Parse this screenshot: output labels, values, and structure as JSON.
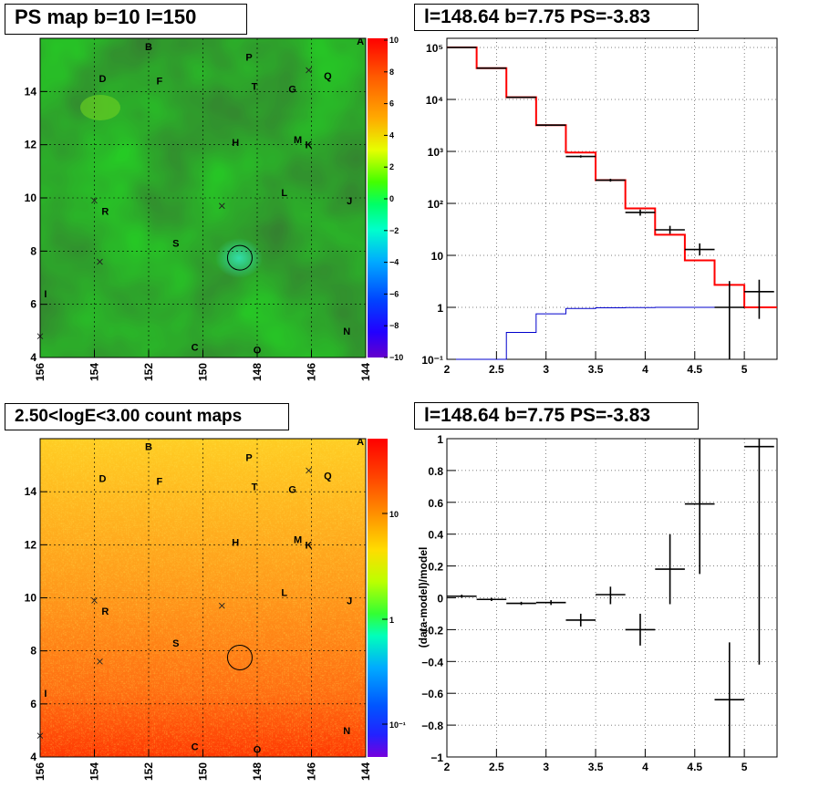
{
  "titles": {
    "map1": "PS map b=10 l=150",
    "plot1": "l=148.64 b=7.75 PS=-3.83",
    "map2": "2.50<logE<3.00 count maps",
    "plot2": "l=148.64 b=7.75 PS=-3.83"
  },
  "colors": {
    "map_green": "#22dd22",
    "map_orange": "#ff8c1a",
    "model_line": "#ff0000",
    "data_line": "#000000",
    "bg_line": "#0000cc"
  },
  "map_labels": [
    {
      "t": "A",
      "lon": 144.2,
      "lat": 15.9
    },
    {
      "t": "B",
      "lon": 152.0,
      "lat": 15.7
    },
    {
      "t": "P",
      "lon": 148.3,
      "lat": 15.3
    },
    {
      "t": "Q",
      "lon": 145.4,
      "lat": 14.6
    },
    {
      "t": "D",
      "lon": 153.7,
      "lat": 14.5
    },
    {
      "t": "F",
      "lon": 151.6,
      "lat": 14.4
    },
    {
      "t": "T",
      "lon": 148.1,
      "lat": 14.2
    },
    {
      "t": "G",
      "lon": 146.7,
      "lat": 14.1
    },
    {
      "t": "H",
      "lon": 148.8,
      "lat": 12.1
    },
    {
      "t": "M",
      "lon": 146.5,
      "lat": 12.2
    },
    {
      "t": "K",
      "lon": 146.1,
      "lat": 12.0
    },
    {
      "t": "L",
      "lon": 147.0,
      "lat": 10.2
    },
    {
      "t": "J",
      "lon": 144.6,
      "lat": 9.9
    },
    {
      "t": "R",
      "lon": 153.6,
      "lat": 9.5
    },
    {
      "t": "S",
      "lon": 151.0,
      "lat": 8.3
    },
    {
      "t": "I",
      "lon": 155.8,
      "lat": 6.4
    },
    {
      "t": "N",
      "lon": 144.7,
      "lat": 5.0
    },
    {
      "t": "C",
      "lon": 150.3,
      "lat": 4.4
    },
    {
      "t": "O",
      "lon": 148.0,
      "lat": 4.3
    }
  ],
  "map_crosses": [
    {
      "lon": 146.1,
      "lat": 14.8
    },
    {
      "lon": 154.0,
      "lat": 9.9
    },
    {
      "lon": 149.3,
      "lat": 9.7
    },
    {
      "lon": 153.8,
      "lat": 7.6
    },
    {
      "lon": 156.0,
      "lat": 4.8
    }
  ],
  "source_circle": {
    "lon": 148.64,
    "lat": 7.75
  },
  "map1_axis": {
    "xticks": [
      "156",
      "154",
      "152",
      "150",
      "148",
      "146",
      "144"
    ],
    "yticks": [
      "4",
      "6",
      "8",
      "10",
      "12",
      "14"
    ],
    "colorbar_ticks": [
      "10",
      "8",
      "6",
      "4",
      "2",
      "0",
      "−2",
      "−4",
      "−6",
      "−8",
      "−10"
    ]
  },
  "map2_axis": {
    "xticks": [
      "156",
      "154",
      "152",
      "150",
      "148",
      "146",
      "144"
    ],
    "yticks": [
      "4",
      "6",
      "8",
      "10",
      "12",
      "14"
    ],
    "colorbar_ticks": [
      "10",
      "1",
      "10⁻¹"
    ]
  },
  "chart_data": [
    {
      "type": "line",
      "name": "spectrum",
      "xlim": [
        2.0,
        5.33
      ],
      "ylim": [
        0.1,
        150000
      ],
      "yscale": "log",
      "grid": true,
      "xticks": [
        "2",
        "2.5",
        "3",
        "3.5",
        "4",
        "4.5",
        "5"
      ],
      "yticks": [
        "10⁻¹",
        "1",
        "10",
        "10²",
        "10³",
        "10⁴",
        "10⁵"
      ],
      "model_steps": {
        "edges": [
          2.0,
          2.3,
          2.6,
          2.9,
          3.2,
          3.5,
          3.8,
          4.1,
          4.4,
          4.7,
          5.0,
          5.33
        ],
        "values": [
          100000,
          40000,
          11000,
          3200,
          950,
          280,
          80,
          25,
          8,
          2.7,
          1.0
        ]
      },
      "background_steps": {
        "edges": [
          2.0,
          2.6,
          2.9,
          3.2,
          3.5,
          3.8,
          4.1,
          4.4,
          4.7,
          5.0,
          5.33
        ],
        "values": [
          0.1,
          0.33,
          0.75,
          0.95,
          0.98,
          0.99,
          1.0,
          1.0,
          1.0,
          1.0
        ]
      },
      "data_points": [
        {
          "x": 2.15,
          "y": 100000,
          "xerr": 0.15,
          "ylo": 99000,
          "yhi": 101000
        },
        {
          "x": 2.45,
          "y": 40000,
          "xerr": 0.15,
          "ylo": 39500,
          "yhi": 40500
        },
        {
          "x": 2.75,
          "y": 11000,
          "xerr": 0.15,
          "ylo": 10800,
          "yhi": 11200
        },
        {
          "x": 3.05,
          "y": 3200,
          "xerr": 0.15,
          "ylo": 3100,
          "yhi": 3300
        },
        {
          "x": 3.35,
          "y": 800,
          "xerr": 0.15,
          "ylo": 760,
          "yhi": 840
        },
        {
          "x": 3.65,
          "y": 280,
          "xerr": 0.15,
          "ylo": 262,
          "yhi": 298
        },
        {
          "x": 3.95,
          "y": 67,
          "xerr": 0.15,
          "ylo": 58,
          "yhi": 76
        },
        {
          "x": 4.25,
          "y": 31,
          "xerr": 0.15,
          "ylo": 26,
          "yhi": 37
        },
        {
          "x": 4.55,
          "y": 13,
          "xerr": 0.15,
          "ylo": 10,
          "yhi": 17
        },
        {
          "x": 4.85,
          "y": 1,
          "xerr": 0.15,
          "ylo": 0.1,
          "yhi": 3.2
        },
        {
          "x": 5.15,
          "y": 2,
          "xerr": 0.15,
          "ylo": 0.6,
          "yhi": 3.4
        }
      ]
    },
    {
      "type": "scatter",
      "name": "residuals",
      "ylabel": "(data-model)/model",
      "xlim": [
        2.0,
        5.33
      ],
      "ylim": [
        -1,
        1
      ],
      "grid": true,
      "xticks": [
        "2",
        "2.5",
        "3",
        "3.5",
        "4",
        "4.5",
        "5"
      ],
      "yticks": [
        "−1",
        "−0.8",
        "−0.6",
        "−0.4",
        "−0.2",
        "0",
        "0.2",
        "0.4",
        "0.6",
        "0.8",
        "1"
      ],
      "points": [
        {
          "x": 2.15,
          "y": 0.01,
          "xerr": 0.15,
          "ylo": 0.0,
          "yhi": 0.02
        },
        {
          "x": 2.45,
          "y": -0.01,
          "xerr": 0.15,
          "ylo": -0.02,
          "yhi": 0.0
        },
        {
          "x": 2.75,
          "y": -0.035,
          "xerr": 0.15,
          "ylo": -0.045,
          "yhi": -0.025
        },
        {
          "x": 3.05,
          "y": -0.03,
          "xerr": 0.15,
          "ylo": -0.045,
          "yhi": -0.015
        },
        {
          "x": 3.35,
          "y": -0.14,
          "xerr": 0.15,
          "ylo": -0.18,
          "yhi": -0.1
        },
        {
          "x": 3.65,
          "y": 0.02,
          "xerr": 0.15,
          "ylo": -0.04,
          "yhi": 0.07
        },
        {
          "x": 3.95,
          "y": -0.2,
          "xerr": 0.15,
          "ylo": -0.3,
          "yhi": -0.1
        },
        {
          "x": 4.25,
          "y": 0.18,
          "xerr": 0.15,
          "ylo": -0.04,
          "yhi": 0.4
        },
        {
          "x": 4.55,
          "y": 0.59,
          "xerr": 0.15,
          "ylo": 0.15,
          "yhi": 1.0
        },
        {
          "x": 4.85,
          "y": -0.64,
          "xerr": 0.15,
          "ylo": -1.0,
          "yhi": -0.28
        },
        {
          "x": 5.15,
          "y": 0.95,
          "xerr": 0.15,
          "ylo": -0.42,
          "yhi": 1.0
        }
      ]
    }
  ]
}
